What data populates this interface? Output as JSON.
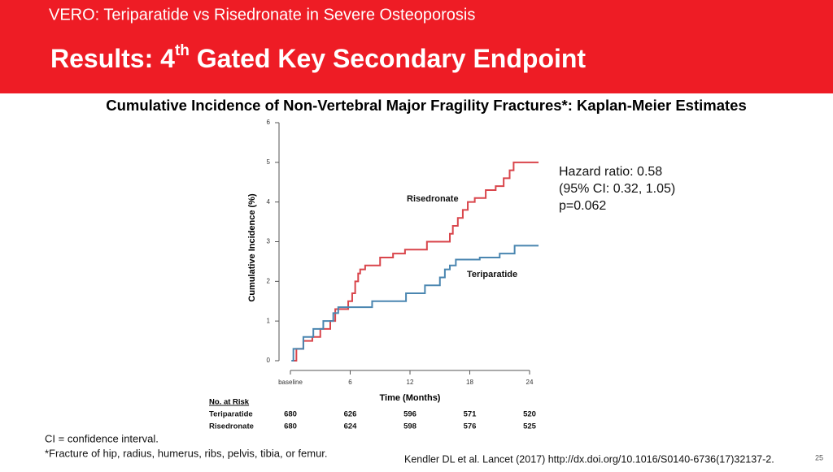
{
  "header": {
    "subtitle": "VERO: Teriparatide vs Risedronate in Severe Osteoporosis",
    "title_parts": [
      "Results: 4",
      "th",
      " Gated Key Secondary Endpoint"
    ]
  },
  "chart_data": {
    "type": "step",
    "title": "Cumulative Incidence of Non-Vertebral Major Fragility Fractures*: Kaplan-Meier Estimates",
    "x_label": "Time (Months)",
    "y_label": "Cumulative Incidence (%)",
    "xlim": [
      -1,
      25
    ],
    "ylim": [
      0,
      6
    ],
    "xticks": [
      {
        "value": 0,
        "label": "baseline"
      },
      6,
      12,
      18,
      24
    ],
    "yticks": [
      0,
      1,
      2,
      3,
      4,
      5,
      6
    ],
    "series": [
      {
        "name": "Risedronate",
        "color": "#d9454b",
        "x": [
          0.3,
          0.6,
          1.3,
          2.2,
          3.0,
          4.0,
          4.5,
          5.8,
          6.2,
          6.5,
          6.8,
          7.0,
          7.5,
          9.0,
          10.3,
          11.5,
          13.7,
          14.2,
          16.0,
          16.3,
          16.8,
          17.3,
          17.8,
          18.5,
          19.6,
          20.6,
          21.4,
          22.0,
          22.4,
          24.9
        ],
        "values": [
          0,
          0.3,
          0.5,
          0.6,
          0.8,
          1.0,
          1.3,
          1.5,
          1.7,
          2.0,
          2.2,
          2.3,
          2.4,
          2.6,
          2.7,
          2.8,
          3.0,
          3.0,
          3.2,
          3.4,
          3.6,
          3.8,
          4.0,
          4.1,
          4.3,
          4.4,
          4.6,
          4.8,
          5.0,
          5.0
        ]
      },
      {
        "name": "Teriparatide",
        "color": "#4a86b0",
        "x": [
          0.1,
          0.3,
          1.3,
          2.3,
          3.3,
          4.3,
          4.8,
          8.2,
          11.6,
          13.5,
          15.0,
          15.5,
          16.0,
          16.6,
          19.0,
          21.0,
          22.5,
          24.9
        ],
        "values": [
          0,
          0.3,
          0.6,
          0.8,
          1.0,
          1.2,
          1.35,
          1.5,
          1.7,
          1.9,
          2.1,
          2.3,
          2.4,
          2.55,
          2.6,
          2.7,
          2.9,
          2.9
        ]
      }
    ]
  },
  "annotation": [
    "Hazard ratio: 0.58",
    "(95% CI: 0.32, 1.05)",
    "p=0.062"
  ],
  "risk_table": {
    "header": "No. at Risk",
    "rows": [
      [
        "Teriparatide",
        "680",
        "626",
        "596",
        "571",
        "520"
      ],
      [
        "Risedronate",
        "680",
        "624",
        "598",
        "576",
        "525"
      ]
    ]
  },
  "footnotes": [
    "CI = confidence interval.",
    "*Fracture of hip, radius, humerus, ribs, pelvis, tibia, or femur."
  ],
  "citation": "Kendler DL et al. Lancet (2017) http://dx.doi.org/10.1016/S0140-6736(17)32137-2.",
  "page_number": "25"
}
